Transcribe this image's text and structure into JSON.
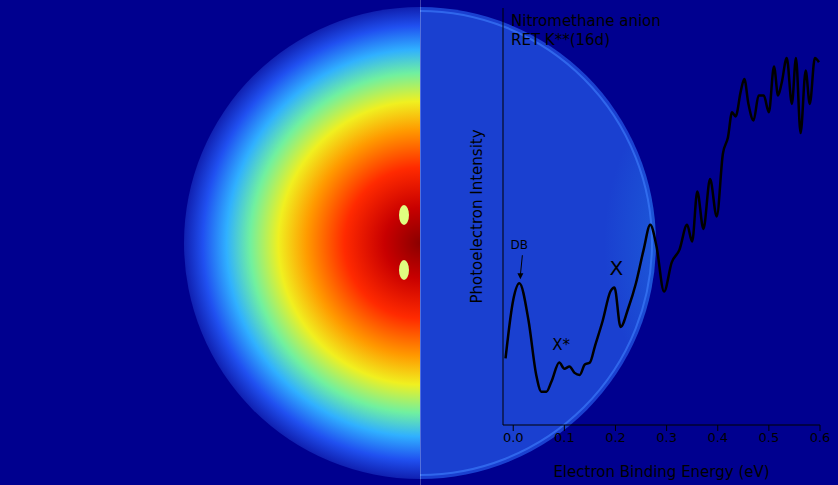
{
  "chart_data": {
    "type": "line",
    "title": "Nitromethane anion",
    "subtitle": "RET K**(16d)",
    "x_label": "Electron Binding Energy (eV)",
    "y_label": "Photoelectron Intensity",
    "image_label": "DB",
    "color": "#000000",
    "x": [
      -0.015,
      0.0,
      0.012,
      0.03,
      0.045,
      0.055,
      0.065,
      0.075,
      0.09,
      0.1,
      0.11,
      0.12,
      0.13,
      0.14,
      0.15,
      0.16,
      0.175,
      0.19,
      0.198,
      0.21,
      0.225,
      0.24,
      0.255,
      0.268,
      0.28,
      0.295,
      0.31,
      0.325,
      0.34,
      0.35,
      0.36,
      0.372,
      0.385,
      0.398,
      0.41,
      0.42,
      0.428,
      0.435,
      0.445,
      0.452,
      0.46,
      0.47,
      0.48,
      0.49,
      0.5,
      0.51,
      0.518,
      0.525,
      0.535,
      0.545,
      0.553,
      0.562,
      0.572,
      0.58,
      0.59,
      0.598
    ],
    "values": [
      0.16,
      0.3,
      0.34,
      0.25,
      0.12,
      0.08,
      0.08,
      0.105,
      0.15,
      0.135,
      0.14,
      0.125,
      0.12,
      0.145,
      0.15,
      0.19,
      0.25,
      0.32,
      0.33,
      0.235,
      0.28,
      0.34,
      0.42,
      0.48,
      0.43,
      0.32,
      0.39,
      0.42,
      0.48,
      0.44,
      0.56,
      0.47,
      0.59,
      0.5,
      0.65,
      0.69,
      0.75,
      0.74,
      0.8,
      0.83,
      0.77,
      0.73,
      0.79,
      0.79,
      0.75,
      0.86,
      0.79,
      0.82,
      0.88,
      0.77,
      0.88,
      0.7,
      0.85,
      0.77,
      0.88,
      0.87
    ],
    "xlim": [
      -0.02,
      0.6
    ],
    "xticks": [
      {
        "value": 0,
        "label": "0.0"
      },
      0.1,
      0.2,
      0.3,
      0.4,
      0.5,
      0.6
    ],
    "ylim": [
      0,
      1
    ],
    "tick_labels": "x",
    "grid": false,
    "peak_labels": [
      {
        "text": "DB",
        "x": 0.012
      },
      {
        "text": "X*",
        "x": 0.09
      },
      {
        "text": "X",
        "x": 0.198
      }
    ]
  }
}
